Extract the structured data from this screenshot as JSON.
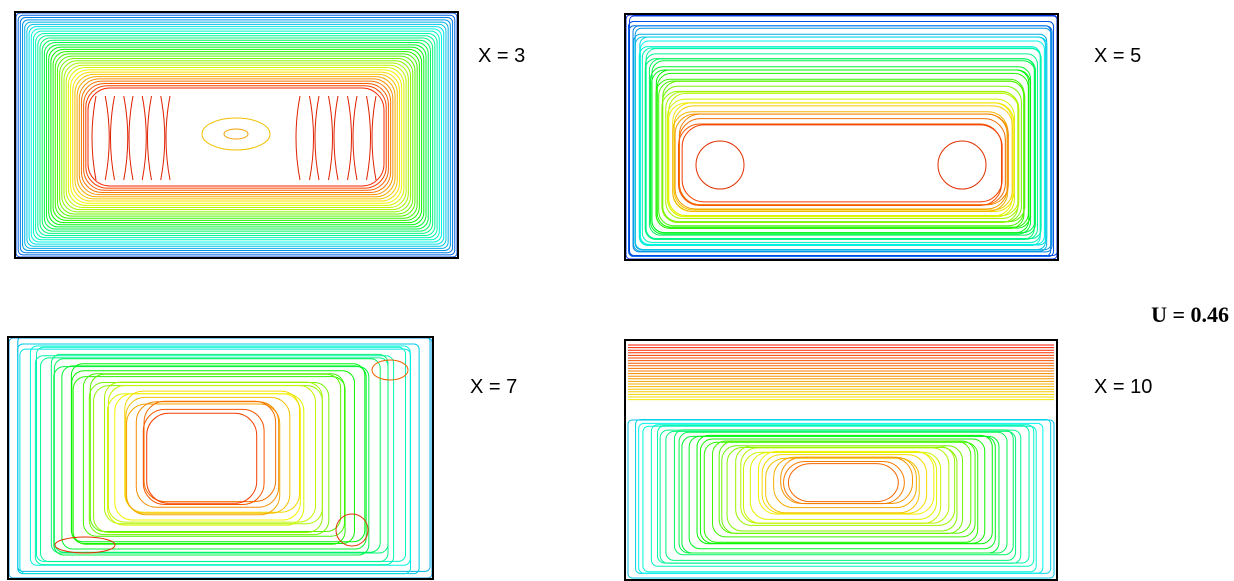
{
  "panels": [
    {
      "label": "X = 3"
    },
    {
      "label": "X = 5"
    },
    {
      "label": "X = 7"
    },
    {
      "label": "X = 10"
    }
  ],
  "annotation": "U = 0.46"
}
